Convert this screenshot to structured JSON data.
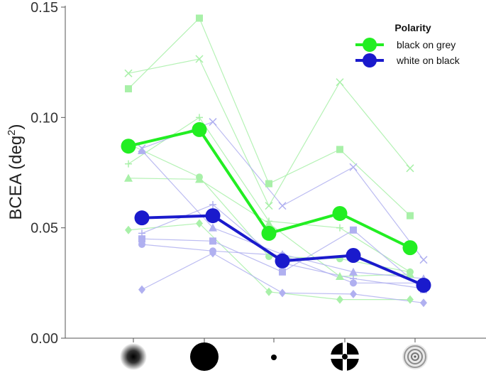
{
  "chart_data": {
    "type": "line",
    "ylabel_main": "BCEA (deg",
    "ylabel_sup": "2",
    "ylabel_end": ")",
    "ylim": [
      0,
      0.15
    ],
    "yticks": [
      0.0,
      0.05,
      0.1,
      0.15
    ],
    "ytick_labels": [
      "0.00",
      "0.05",
      "0.10",
      "0.15"
    ],
    "categories": [
      "blurred-disc",
      "large-black-disc",
      "small-dot",
      "bullseye-cross",
      "concentric-rings"
    ],
    "legend": {
      "title": "Polarity",
      "position": "top-right",
      "entries": [
        {
          "label": "black on grey",
          "color": "#22ee22"
        },
        {
          "label": "white on black",
          "color": "#1a1acc"
        }
      ]
    },
    "series": [
      {
        "name": "black on grey",
        "color": "#22ee22",
        "values": [
          0.087,
          0.0945,
          0.0475,
          0.0565,
          0.041
        ]
      },
      {
        "name": "white on black",
        "color": "#1a1acc",
        "values": [
          0.0545,
          0.0555,
          0.035,
          0.0375,
          0.024
        ]
      }
    ],
    "individual": {
      "black on grey": [
        {
          "marker": "x",
          "values": [
            0.12,
            0.1265,
            0.06,
            0.116,
            0.077
          ]
        },
        {
          "marker": "square",
          "values": [
            0.113,
            0.145,
            0.07,
            0.0855,
            0.0555
          ]
        },
        {
          "marker": "plus",
          "values": [
            0.079,
            0.1,
            0.053,
            0.05,
            0.03
          ]
        },
        {
          "marker": "triangle",
          "values": [
            0.0725,
            0.072,
            0.052,
            0.028,
            0.029
          ]
        },
        {
          "marker": "circle",
          "values": [
            0.088,
            0.073,
            0.037,
            0.036,
            0.03
          ]
        },
        {
          "marker": "diamond",
          "values": [
            0.049,
            0.052,
            0.021,
            0.0175,
            0.0175
          ]
        }
      ],
      "white on black": [
        {
          "marker": "x",
          "values": [
            0.086,
            0.098,
            0.06,
            0.0775,
            0.0355
          ]
        },
        {
          "marker": "square",
          "values": [
            0.045,
            0.044,
            0.03,
            0.049,
            0.022
          ]
        },
        {
          "marker": "plus",
          "values": [
            0.0475,
            0.0605,
            0.034,
            0.027,
            0.0225
          ]
        },
        {
          "marker": "triangle",
          "values": [
            0.085,
            0.05,
            0.038,
            0.03,
            0.027
          ]
        },
        {
          "marker": "circle",
          "values": [
            0.0425,
            0.0395,
            0.0375,
            0.025,
            0.025
          ]
        },
        {
          "marker": "diamond",
          "values": [
            0.022,
            0.0385,
            0.0205,
            0.02,
            0.016
          ]
        }
      ]
    }
  }
}
